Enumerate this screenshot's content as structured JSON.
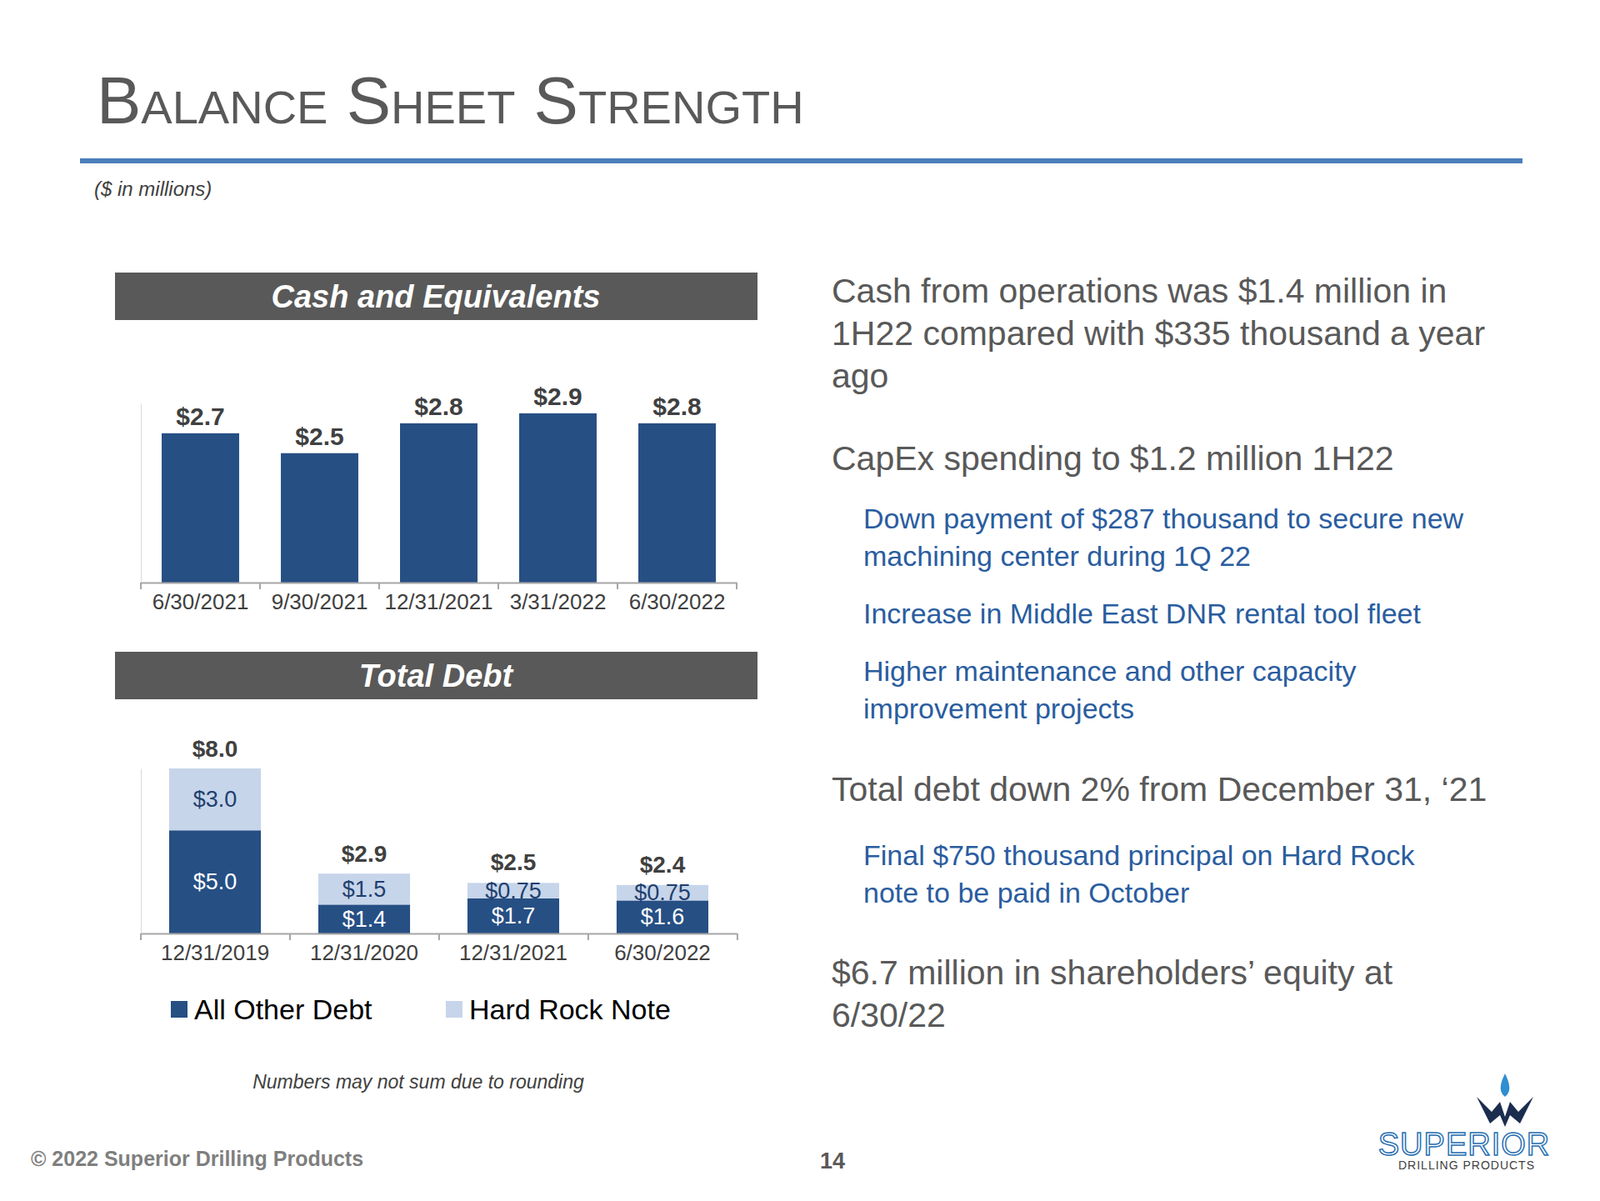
{
  "slide": {
    "title": "Balance Sheet Strength",
    "units_note": "($ in millions)",
    "points": [
      {
        "text": [
          "Cash from operations was $1.4 million in",
          "1H22 compared with $335 thousand a year",
          "ago"
        ],
        "subpoints": []
      },
      {
        "text": [
          "CapEx spending to $1.2 million 1H22"
        ],
        "subpoints": [
          {
            "text": [
              "Down payment of $287 thousand to secure new",
              "machining center during 1Q 22"
            ]
          },
          {
            "text": [
              "Increase in Middle East DNR rental tool fleet"
            ]
          },
          {
            "text": [
              "Higher maintenance and other capacity",
              "improvement projects"
            ]
          }
        ]
      },
      {
        "text": [
          "Total debt down 2% from December 31, ‘21"
        ],
        "subpoints": [
          {
            "text": [
              "Final $750 thousand principal on Hard Rock",
              "note to be paid in October"
            ]
          }
        ]
      },
      {
        "text": [
          "$6.7 million in shareholders’ equity at",
          "6/30/22"
        ],
        "subpoints": []
      }
    ],
    "footnote": "Numbers may not sum due to rounding",
    "footer": "© 2022 Superior Drilling Products",
    "page_number": 14,
    "logo": [
      "SUPERIOR",
      "DRILLING PRODUCTS"
    ]
  },
  "chart_data": [
    {
      "type": "bar",
      "title": "Cash and Equivalents",
      "categories": [
        "6/30/2021",
        "9/30/2021",
        "12/31/2021",
        "3/31/2022",
        "6/30/2022"
      ],
      "values": [
        2.7,
        2.5,
        2.8,
        2.9,
        2.8
      ],
      "value_labels": [
        "$2.7",
        "$2.5",
        "$2.8",
        "$2.9",
        "$2.8"
      ],
      "color": "#264f84",
      "ylim": [
        1.2,
        3.0
      ],
      "yticks": [],
      "data_labels": true,
      "tick_labels": "x"
    },
    {
      "type": "bar",
      "title": "Total Debt",
      "stacked": true,
      "categories": [
        "12/31/2019",
        "12/31/2020",
        "12/31/2021",
        "6/30/2022"
      ],
      "series": [
        {
          "name": "All Other Debt",
          "color": "#264f84",
          "values": [
            5.0,
            1.4,
            1.7,
            1.6
          ],
          "value_labels": [
            "$5.0",
            "$1.4",
            "$1.7",
            "$1.6"
          ]
        },
        {
          "name": "Hard Rock Note",
          "color": "#c6d5ea",
          "values": [
            3.0,
            1.5,
            0.75,
            0.75
          ],
          "value_labels": [
            "$3.0",
            "$1.5",
            "$0.75",
            "$0.75"
          ]
        }
      ],
      "totals": [
        8.0,
        2.9,
        2.5,
        2.4
      ],
      "total_labels": [
        "$8.0",
        "$2.9",
        "$2.5",
        "$2.4"
      ],
      "ylim": [
        0,
        8
      ],
      "yticks": [],
      "data_labels": true,
      "tick_labels": "x",
      "legend": "bottom"
    }
  ]
}
